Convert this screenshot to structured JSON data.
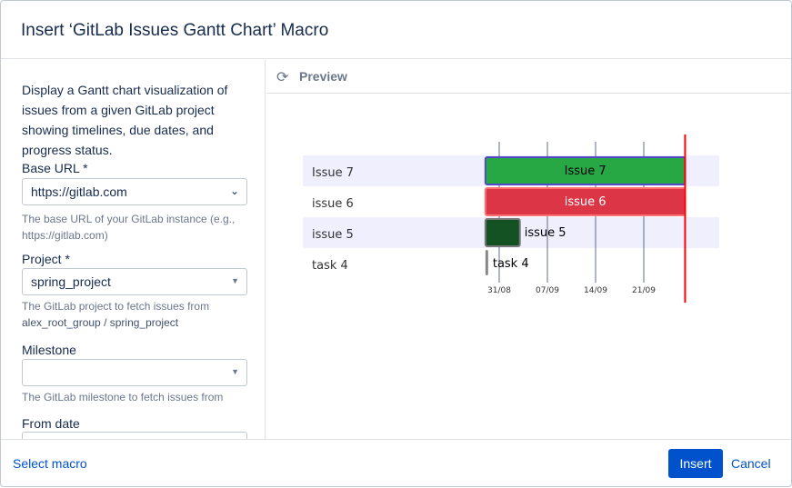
{
  "dialog": {
    "title": "Insert ‘GitLab Issues Gantt Chart’ Macro"
  },
  "form": {
    "description": "Display a Gantt chart visualization of issues from a given GitLab project showing timelines, due dates, and progress status.",
    "base_url": {
      "label": "Base URL *",
      "value": "https://gitlab.com",
      "help": "The base URL of your GitLab instance (e.g., https://gitlab.com)"
    },
    "project": {
      "label": "Project *",
      "value": "spring_project",
      "help": "The GitLab project to fetch issues from",
      "path": "alex_root_group / spring_project"
    },
    "milestone": {
      "label": "Milestone",
      "value": "",
      "help": "The GitLab milestone to fetch issues from"
    },
    "from_date": {
      "label": "From date"
    }
  },
  "preview": {
    "label": "Preview",
    "icon": "refresh-icon"
  },
  "footer": {
    "select_macro": "Select macro",
    "insert": "Insert",
    "cancel": "Cancel"
  },
  "chart_data": {
    "type": "gantt",
    "x_ticks": [
      "31/08",
      "07/09",
      "14/09",
      "21/09"
    ],
    "today": "27/09",
    "tasks": [
      {
        "label": "Issue 7",
        "start": "29/08",
        "end": "27/09",
        "color": "#28a745",
        "border": "#5548c8",
        "text_color": "#000000"
      },
      {
        "label": "issue 6",
        "start": "29/08",
        "end": "27/09",
        "color": "#dc3545",
        "border": "#ff7070",
        "text_color": "#ffffff"
      },
      {
        "label": "issue 5",
        "start": "29/08",
        "end": "03/09",
        "color": "#145224",
        "border": "#777777",
        "text_color": "#000000"
      },
      {
        "label": "task 4",
        "start": "29/08",
        "end": "29/08",
        "color": "#888888",
        "border": "#888888",
        "text_color": "#000000"
      }
    ]
  }
}
